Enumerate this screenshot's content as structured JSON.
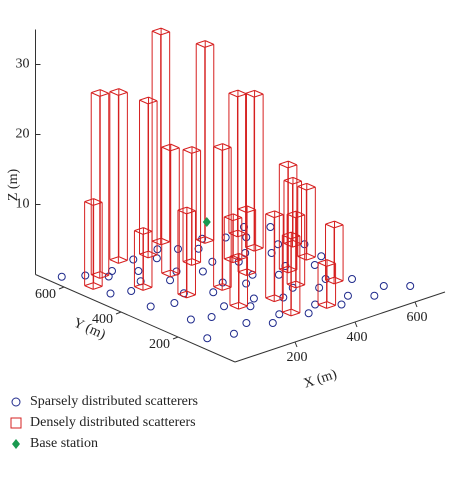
{
  "chart_data": {
    "type": "scatter3d",
    "xlabel": "X (m)",
    "ylabel": "Y (m)",
    "zlabel": "Z (m)",
    "xlim": [
      0,
      700
    ],
    "ylim": [
      0,
      700
    ],
    "zlim": [
      0,
      35
    ],
    "xticks": [
      200,
      400,
      600
    ],
    "yticks": [
      200,
      400,
      600
    ],
    "zticks": [
      10,
      20,
      30
    ],
    "series": [
      {
        "name": "Sparsely distributed scatterers",
        "color": "#1f2a8c",
        "marker": "circle",
        "x": [
          40,
          90,
          130,
          160,
          210,
          250,
          300,
          340,
          380,
          420,
          470,
          520,
          560,
          600,
          650,
          60,
          110,
          170,
          230,
          280,
          330,
          390,
          440,
          490,
          540,
          590,
          640,
          80,
          140,
          200,
          260,
          320,
          360,
          410,
          460,
          510,
          570,
          620,
          100,
          150,
          220,
          270,
          310,
          370,
          430,
          480,
          530,
          580,
          50,
          120,
          190,
          240,
          290,
          350,
          400,
          450,
          500,
          550,
          610,
          660
        ],
        "y": [
          650,
          620,
          580,
          600,
          560,
          620,
          590,
          630,
          600,
          570,
          610,
          580,
          550,
          600,
          560,
          500,
          480,
          510,
          470,
          500,
          460,
          490,
          450,
          480,
          440,
          470,
          430,
          380,
          360,
          390,
          350,
          380,
          340,
          370,
          330,
          360,
          320,
          350,
          260,
          240,
          270,
          230,
          260,
          220,
          250,
          210,
          240,
          200,
          150,
          130,
          160,
          120,
          150,
          110,
          140,
          100,
          130,
          90,
          120,
          80
        ],
        "z": [
          0,
          0,
          0,
          0,
          0,
          0,
          0,
          0,
          0,
          0,
          0,
          0,
          0,
          0,
          0,
          0,
          0,
          0,
          0,
          0,
          0,
          0,
          0,
          0,
          0,
          0,
          0,
          0,
          0,
          0,
          0,
          0,
          0,
          0,
          0,
          0,
          0,
          0,
          0,
          0,
          0,
          0,
          0,
          0,
          0,
          0,
          0,
          0,
          0,
          0,
          0,
          0,
          0,
          0,
          0,
          0,
          0,
          0,
          0,
          0
        ]
      },
      {
        "name": "Densely distributed scatterers",
        "color": "#d62020",
        "marker": "square",
        "x": [
          60,
          120,
          220,
          300,
          380,
          470,
          560,
          150,
          260,
          350,
          440,
          530,
          620,
          200,
          300,
          410,
          500,
          590,
          250,
          350,
          450,
          540,
          320,
          420
        ],
        "y": [
          560,
          600,
          640,
          620,
          660,
          600,
          580,
          480,
          500,
          520,
          470,
          490,
          450,
          380,
          360,
          390,
          340,
          370,
          250,
          230,
          260,
          220,
          140,
          120
        ],
        "z": [
          12,
          26,
          24,
          22,
          30,
          28,
          20,
          8,
          18,
          16,
          6,
          22,
          9,
          12,
          20,
          9,
          15,
          10,
          7,
          12,
          10,
          8,
          11,
          6
        ]
      },
      {
        "name": "Base station",
        "color": "#1a9a50",
        "marker": "diamond",
        "x": [
          400
        ],
        "y": [
          520
        ],
        "z": [
          5
        ]
      }
    ]
  }
}
